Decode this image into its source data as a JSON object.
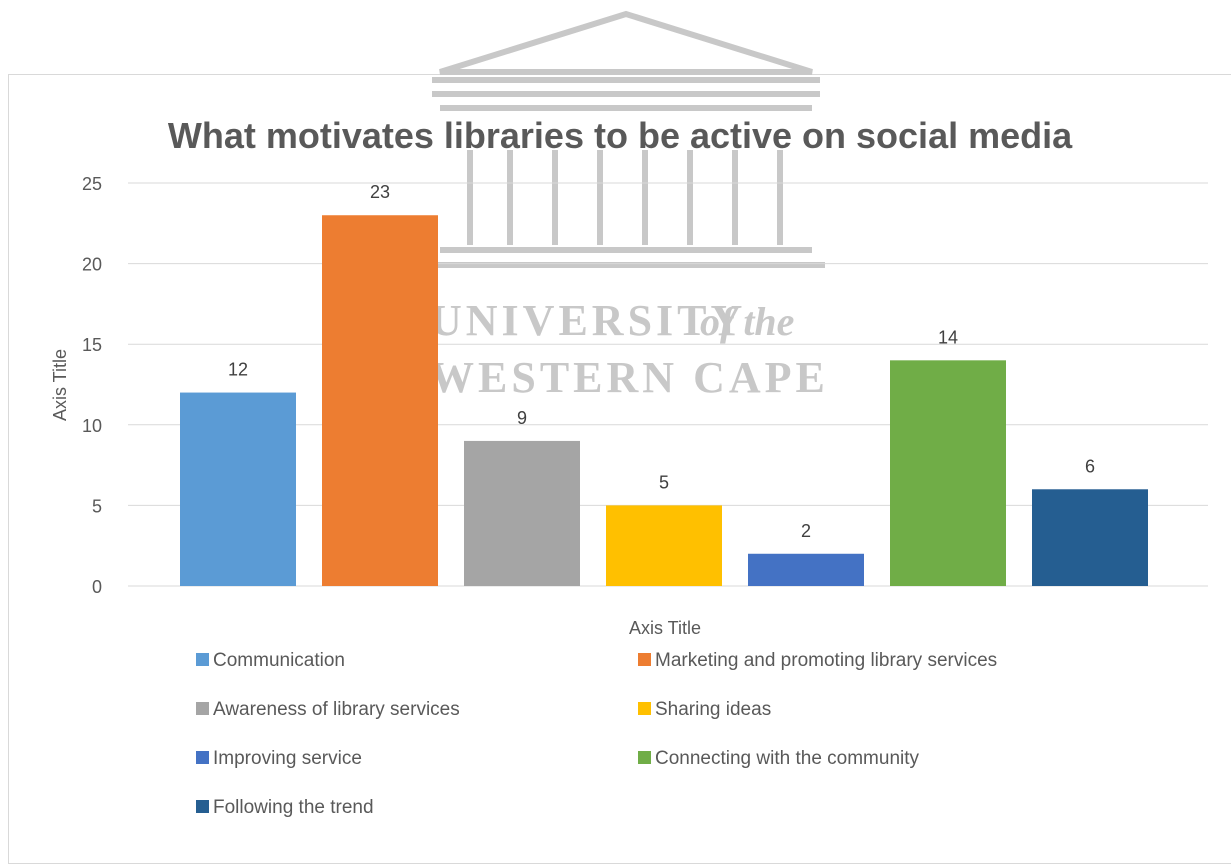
{
  "chart_data": {
    "type": "bar",
    "title": "What motivates libraries to be active on social media",
    "xlabel": "Axis Title",
    "ylabel": "Axis Title",
    "ylim": [
      0,
      25
    ],
    "yticks": [
      0,
      5,
      10,
      15,
      20,
      25
    ],
    "grid": true,
    "legend_position": "bottom",
    "categories": [
      "Communication",
      "Marketing and promoting library services",
      "Awareness of library services",
      "Sharing ideas",
      "Improving service",
      "Connecting with the community",
      "Following the trend"
    ],
    "values": [
      12,
      23,
      9,
      5,
      2,
      14,
      6
    ],
    "colors": [
      "#5b9bd5",
      "#ed7d31",
      "#a5a5a5",
      "#ffc000",
      "#4472c4",
      "#70ad47",
      "#255e91"
    ]
  },
  "watermark": {
    "line1": "UNIVERSITY",
    "line1_suffix": "of the",
    "line2": "WESTERN CAPE"
  }
}
